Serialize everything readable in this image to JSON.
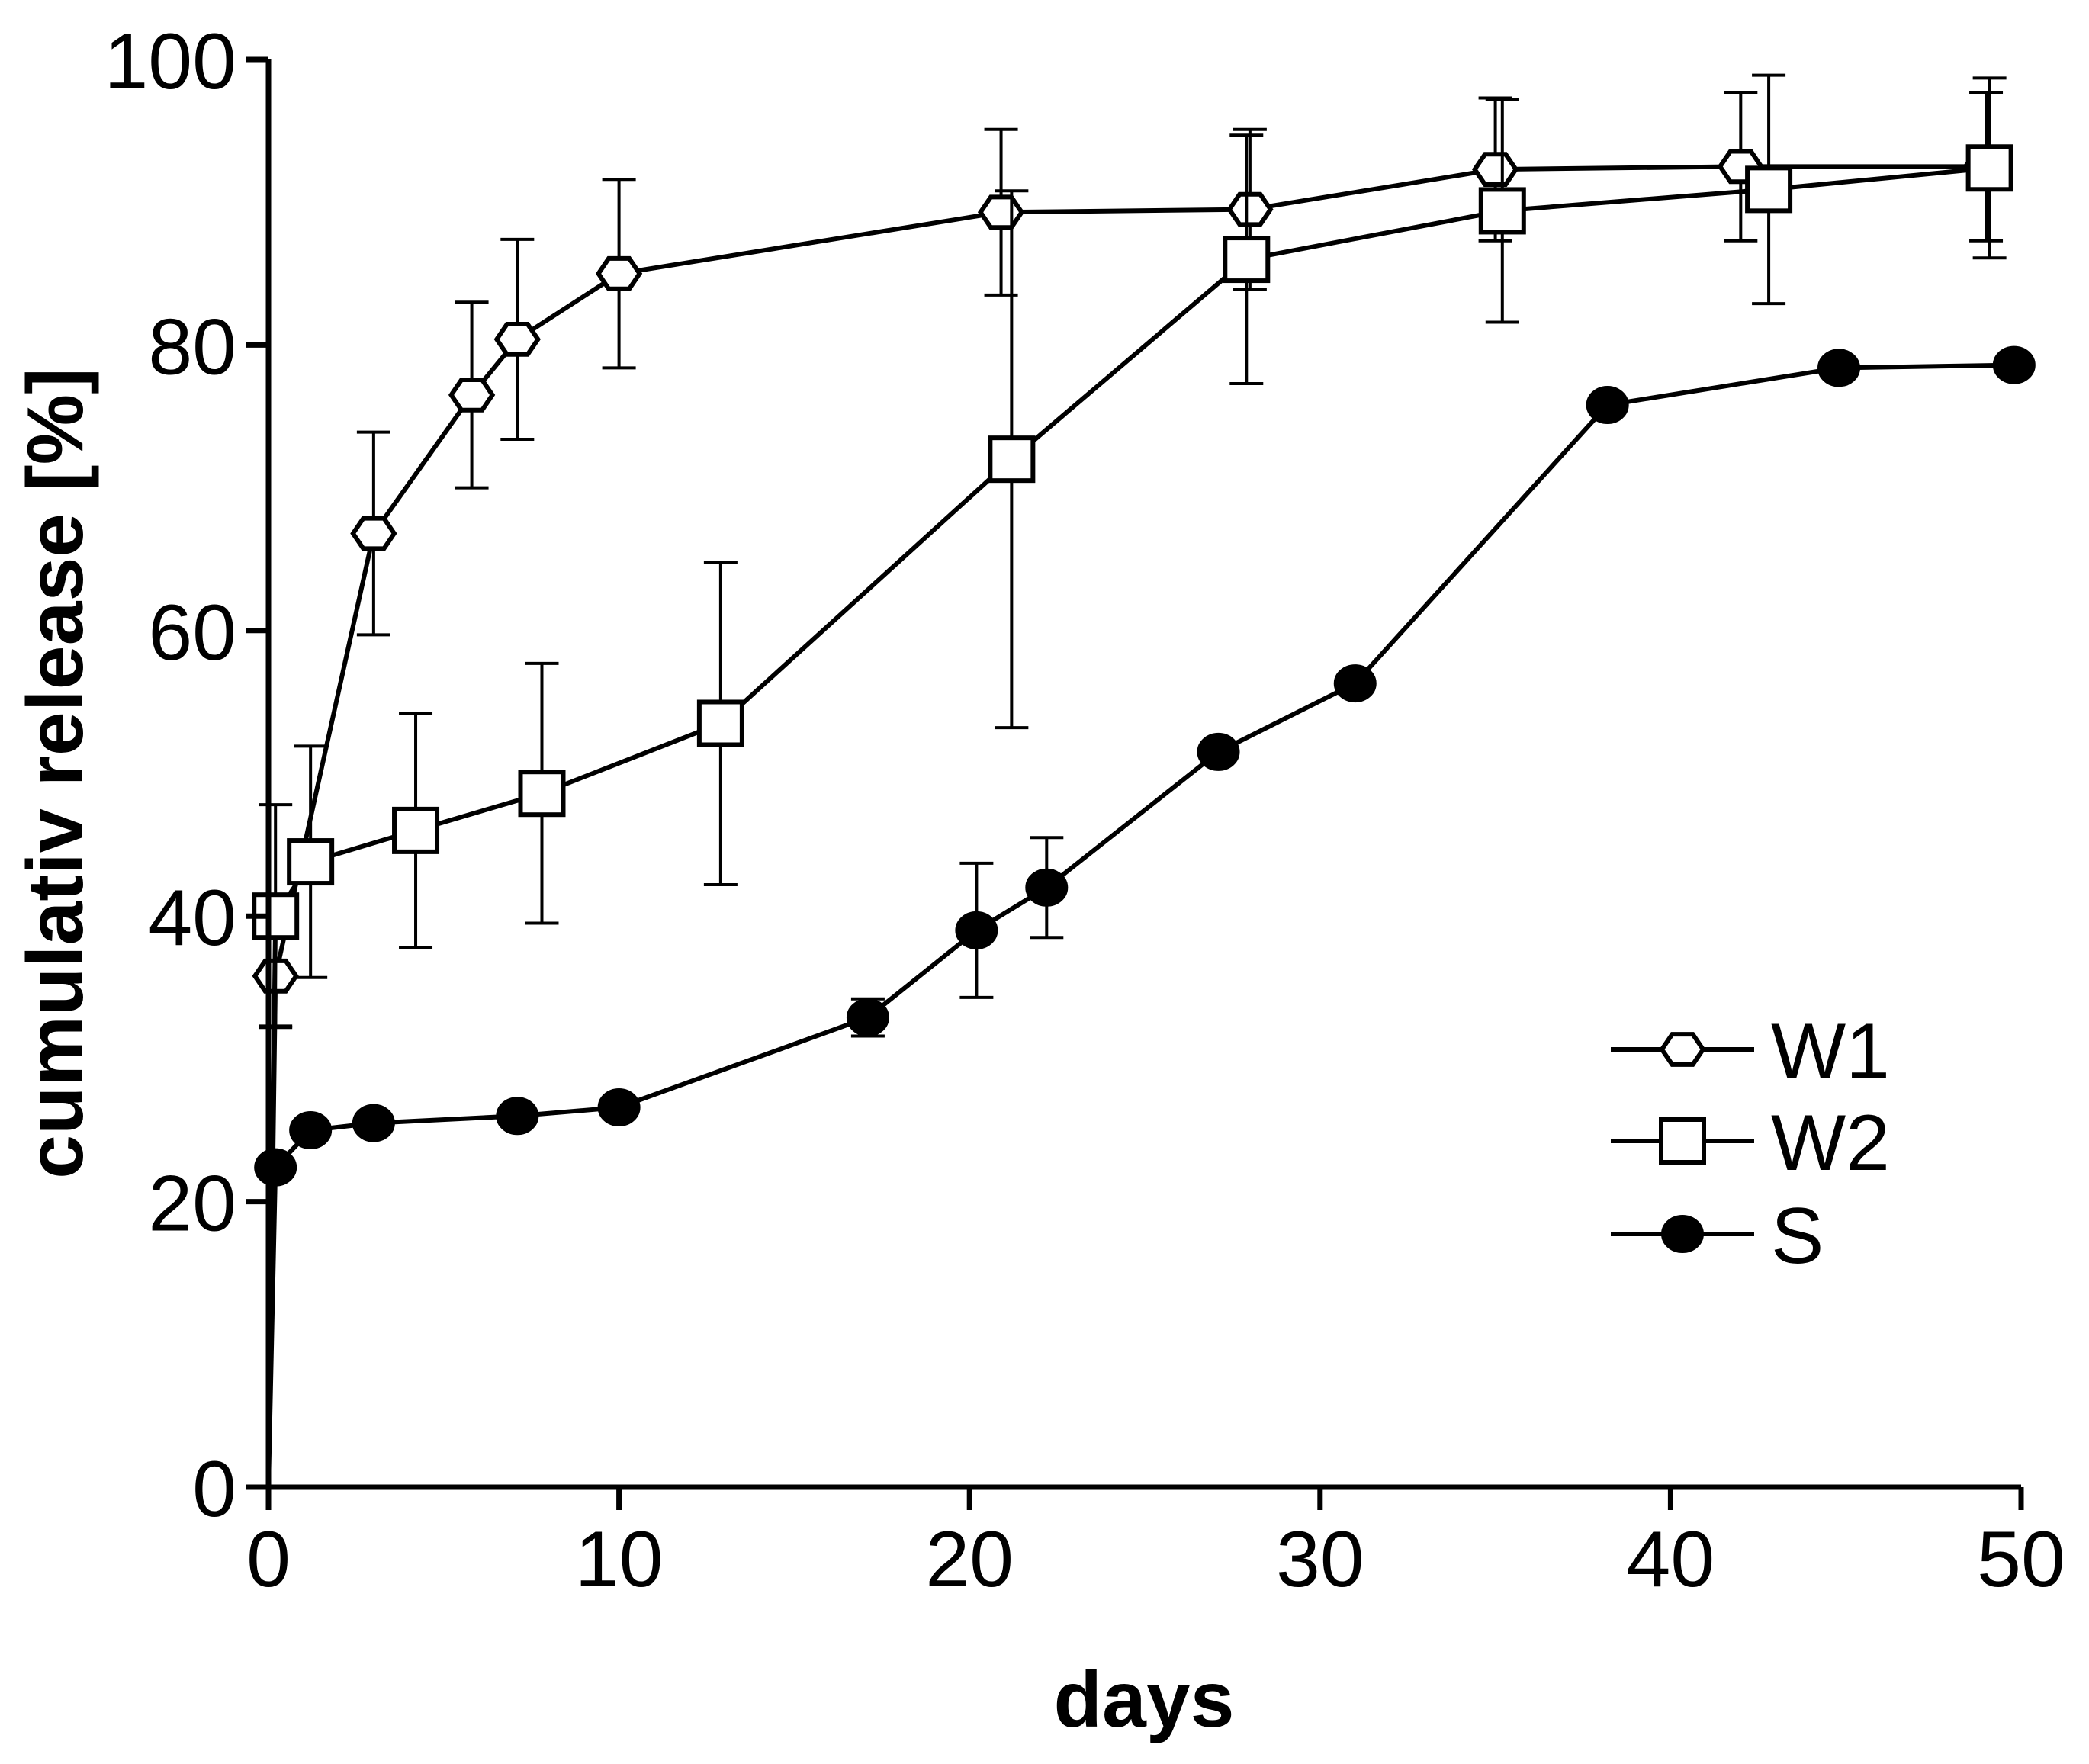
{
  "chart_data": {
    "type": "line",
    "title": "",
    "xlabel": "days",
    "ylabel": "cumulativ release [%]",
    "xlim": [
      0,
      50
    ],
    "ylim": [
      0,
      100
    ],
    "xticks": [
      0,
      10,
      20,
      30,
      40,
      50
    ],
    "yticks": [
      0,
      20,
      40,
      60,
      80,
      100
    ],
    "xtick_labels": [
      "0",
      "10",
      "20",
      "30",
      "40",
      "50"
    ],
    "ytick_labels": [
      "0",
      "20",
      "40",
      "60",
      "80",
      "100"
    ],
    "grid": false,
    "legend_position": "bottom-right",
    "series": [
      {
        "name": "W1",
        "marker": "hexagon-open",
        "x": [
          0,
          0.2,
          3,
          5.8,
          7.1,
          10,
          20.9,
          28,
          35,
          42,
          49
        ],
        "y": [
          0,
          35.8,
          66.8,
          76.5,
          80.4,
          85,
          89.3,
          89.5,
          92.3,
          92.5,
          92.5
        ],
        "err": [
          0,
          3.5,
          7.1,
          6.5,
          7,
          6.6,
          5.8,
          5.6,
          5,
          5.2,
          5.2
        ]
      },
      {
        "name": "W2",
        "marker": "square-open",
        "x": [
          0,
          0.2,
          1.2,
          4.2,
          7.8,
          12.9,
          21.2,
          27.9,
          35.2,
          42.8,
          49.1
        ],
        "y": [
          0,
          40,
          43.8,
          46,
          48.6,
          53.5,
          72,
          86,
          89.4,
          90.9,
          92.4
        ],
        "err": [
          0,
          7.8,
          8.1,
          8.2,
          9.1,
          11.3,
          18.8,
          8.7,
          7.8,
          8,
          6.3
        ]
      },
      {
        "name": "S",
        "marker": "circle-filled",
        "x": [
          0,
          0.2,
          1.2,
          3,
          7.1,
          10,
          17.1,
          20.2,
          22.2,
          27.1,
          31,
          38.2,
          44.8,
          49.8
        ],
        "y": [
          0,
          22.4,
          25,
          25.5,
          26,
          26.6,
          32.9,
          39,
          42,
          51.5,
          56.3,
          75.8,
          78.4,
          78.6
        ],
        "err": [
          0,
          0,
          0,
          0,
          0,
          0,
          1.3,
          4.7,
          3.5,
          0,
          0,
          0,
          0,
          0
        ]
      }
    ]
  }
}
